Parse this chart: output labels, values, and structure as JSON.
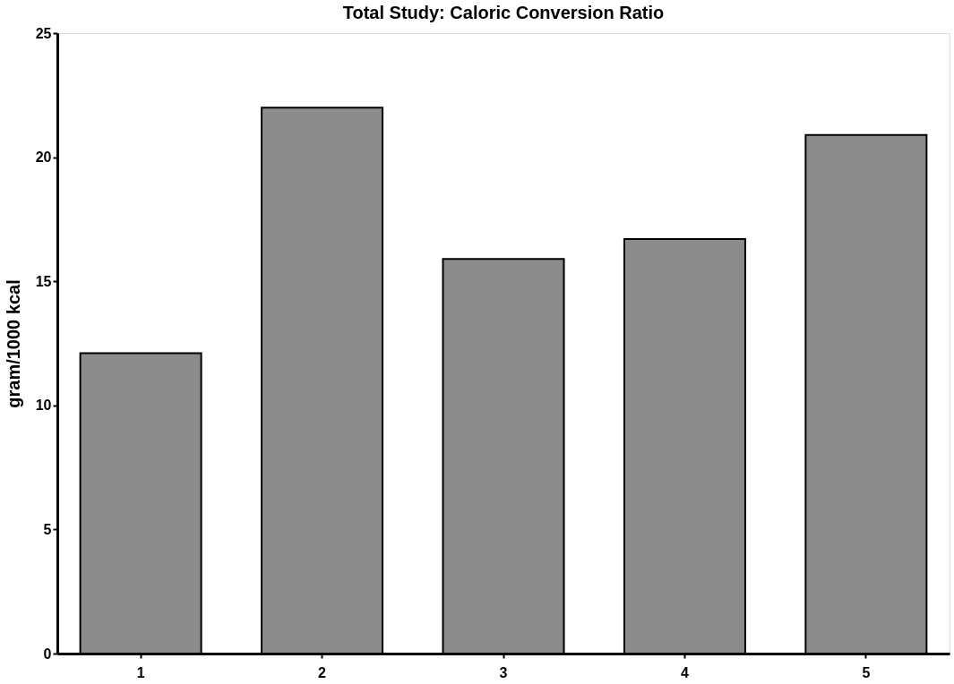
{
  "chart_data": {
    "type": "bar",
    "title": "Total Study: Caloric Conversion Ratio",
    "ylabel": "gram/1000 kcal",
    "categories": [
      "1",
      "2",
      "3",
      "4",
      "5"
    ],
    "values": [
      12.1,
      22.0,
      15.9,
      16.7,
      20.9
    ],
    "color": "#8c8c8c",
    "ylim": [
      0,
      25
    ],
    "yticks": [
      0,
      5,
      10,
      15,
      20,
      25
    ],
    "grid": false
  }
}
